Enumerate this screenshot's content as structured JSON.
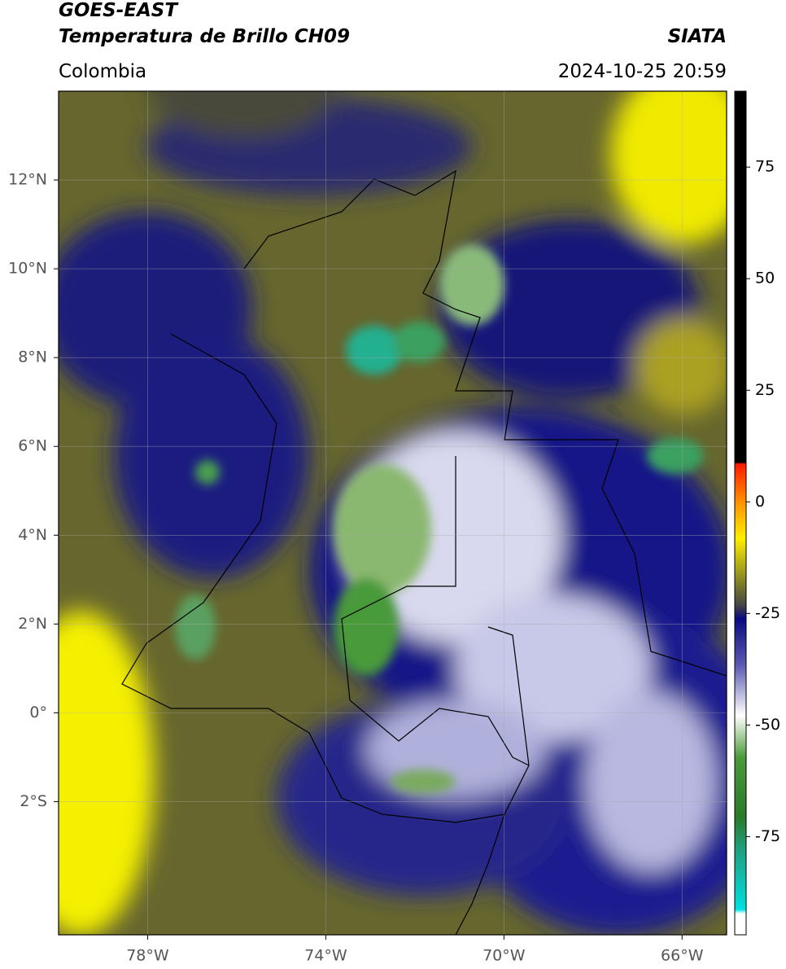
{
  "header": {
    "satellite": "GOES-EAST",
    "product": "Temperatura de Brillo CH09",
    "region": "Colombia",
    "source": "SIATA",
    "datetime": "2024-10-25 20:59"
  },
  "map": {
    "xlim": [
      -80,
      -65
    ],
    "ylim": [
      -5,
      14
    ],
    "xticks": [
      {
        "value": -78,
        "label": "78°W"
      },
      {
        "value": -74,
        "label": "74°W"
      },
      {
        "value": -70,
        "label": "70°W"
      },
      {
        "value": -66,
        "label": "66°W"
      }
    ],
    "yticks": [
      {
        "value": 12,
        "label": "12°N"
      },
      {
        "value": 10,
        "label": "10°N"
      },
      {
        "value": 8,
        "label": "8°N"
      },
      {
        "value": 6,
        "label": "6°N"
      },
      {
        "value": 4,
        "label": "4°N"
      },
      {
        "value": 2,
        "label": "2°N"
      },
      {
        "value": 0,
        "label": "0°"
      },
      {
        "value": -2,
        "label": "2°S"
      }
    ]
  },
  "colorbar": {
    "lim": [
      -97,
      92
    ],
    "ticks": [
      75,
      50,
      25,
      0,
      -25,
      -50,
      -75
    ]
  }
}
